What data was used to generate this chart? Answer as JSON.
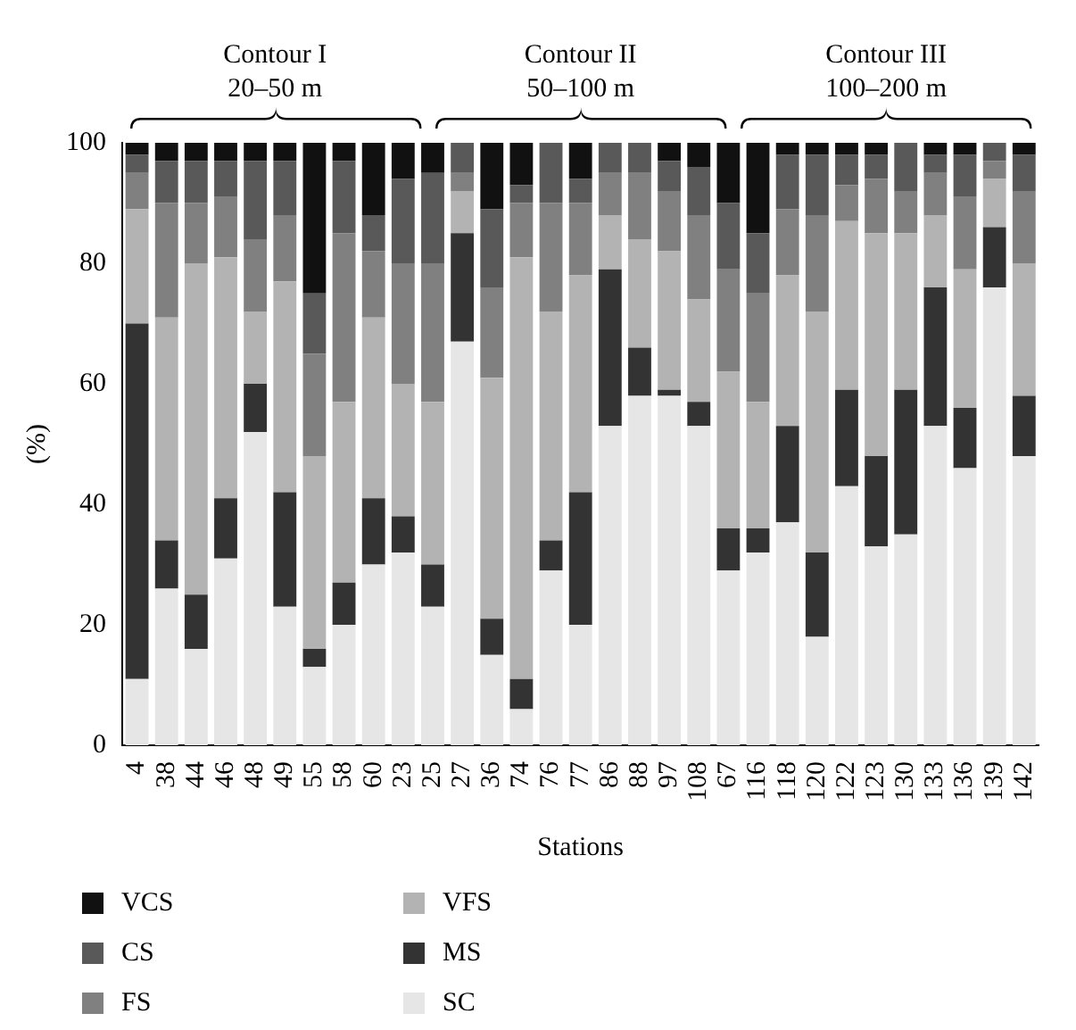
{
  "chart_data": {
    "type": "bar",
    "stacked": true,
    "xlabel": "Stations",
    "ylabel": "(%)",
    "ylim": [
      0,
      100
    ],
    "yticks": [
      0,
      20,
      40,
      60,
      80,
      100
    ],
    "grid": false,
    "legend": "bottom",
    "categories": [
      "4",
      "38",
      "44",
      "46",
      "48",
      "49",
      "55",
      "58",
      "60",
      "23",
      "25",
      "27",
      "36",
      "74",
      "76",
      "77",
      "86",
      "88",
      "97",
      "108",
      "67",
      "116",
      "118",
      "120",
      "122",
      "123",
      "130",
      "133",
      "136",
      "139",
      "142"
    ],
    "annotations": [
      "Contour I\n20–50 m",
      "Contour II\n50–100 m",
      "Contour III\n100–200 m"
    ],
    "series": [
      {
        "name": "SC",
        "color": "#e6e6e6",
        "values": [
          11,
          26,
          16,
          31,
          52,
          23,
          13,
          20,
          30,
          32,
          23,
          67,
          15,
          6,
          29,
          20,
          53,
          58,
          58,
          53,
          29,
          32,
          37,
          18,
          43,
          33,
          35,
          53,
          46,
          76,
          48
        ]
      },
      {
        "name": "MS",
        "color": "#333333",
        "values": [
          59,
          8,
          9,
          10,
          8,
          19,
          3,
          7,
          11,
          6,
          7,
          18,
          6,
          5,
          5,
          22,
          26,
          8,
          1,
          4,
          7,
          4,
          16,
          14,
          16,
          15,
          24,
          23,
          10,
          10,
          10
        ]
      },
      {
        "name": "VFS",
        "color": "#b3b3b3",
        "values": [
          19,
          37,
          55,
          40,
          12,
          35,
          32,
          30,
          30,
          22,
          27,
          7,
          40,
          70,
          38,
          36,
          9,
          18,
          23,
          17,
          26,
          21,
          25,
          40,
          28,
          37,
          26,
          12,
          23,
          8,
          22
        ]
      },
      {
        "name": "FS",
        "color": "#808080",
        "values": [
          6,
          19,
          10,
          10,
          12,
          11,
          17,
          28,
          11,
          20,
          23,
          3,
          15,
          9,
          18,
          12,
          7,
          11,
          10,
          14,
          17,
          18,
          11,
          16,
          6,
          9,
          7,
          7,
          12,
          3,
          12
        ]
      },
      {
        "name": "CS",
        "color": "#595959",
        "values": [
          3,
          7,
          7,
          6,
          13,
          9,
          10,
          12,
          6,
          14,
          15,
          5,
          13,
          3,
          10,
          4,
          5,
          5,
          5,
          8,
          11,
          10,
          9,
          10,
          5,
          4,
          8,
          3,
          7,
          3,
          6
        ]
      },
      {
        "name": "VCS",
        "color": "#111111",
        "values": [
          2,
          3,
          3,
          3,
          3,
          3,
          25,
          3,
          12,
          6,
          5,
          0,
          11,
          7,
          0,
          6,
          0,
          0,
          3,
          4,
          10,
          15,
          2,
          2,
          2,
          2,
          0,
          2,
          2,
          0,
          2
        ]
      }
    ]
  }
}
